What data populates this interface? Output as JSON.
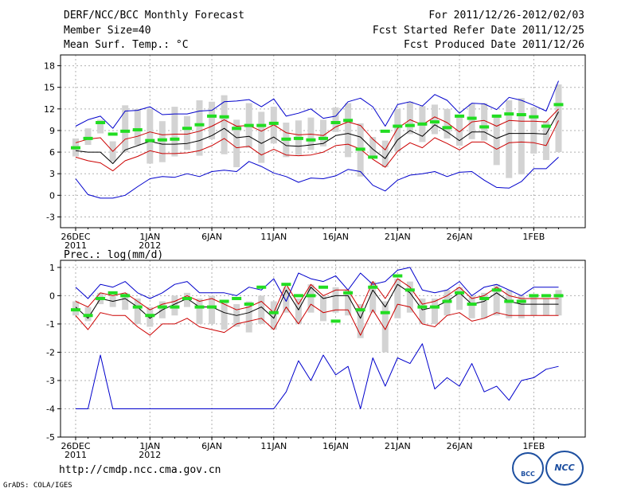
{
  "header": {
    "title": "DERF/NCC/BCC Monthly Forecast",
    "member_size": "Member Size=40",
    "variable": "Mean Surf. Temp.: °C",
    "forecast_period": "For 2011/12/26-2012/02/03",
    "started_refer_date": "Fcst Started Refer Date 2011/12/25",
    "produced_date": "Fcst Produced Date 2011/12/26"
  },
  "footer": {
    "url": "http://cmdp.ncc.cma.gov.cn",
    "credit": "GrADS: COLA/IGES",
    "logo_left": "BCC",
    "logo_right": "NCC"
  },
  "colors": {
    "box": "#d3d3d3",
    "obs_dash": "#22dd22",
    "mean": "#000000",
    "std": "#cc0000",
    "extreme": "#0000cc",
    "grid": "#b0b0b0",
    "frame": "#000000"
  },
  "chart_data": [
    {
      "type": "line",
      "title": "Mean Surf. Temp.: °C",
      "ylim": [
        -4.5,
        19.5
      ],
      "yticks": [
        -3,
        0,
        3,
        6,
        9,
        12,
        15,
        18
      ],
      "ytick_labels": [
        "-3",
        "0",
        "3",
        "6",
        "9",
        "12",
        "15",
        "18"
      ],
      "x_ticks": [
        {
          "day": 0,
          "line1": "26DEC",
          "line2": "2011"
        },
        {
          "day": 6,
          "line1": "1JAN",
          "line2": "2012"
        },
        {
          "day": 11,
          "line1": "6JAN",
          "line2": ""
        },
        {
          "day": 16,
          "line1": "11JAN",
          "line2": ""
        },
        {
          "day": 21,
          "line1": "16JAN",
          "line2": ""
        },
        {
          "day": 26,
          "line1": "21JAN",
          "line2": ""
        },
        {
          "day": 31,
          "line1": "26JAN",
          "line2": ""
        },
        {
          "day": 37,
          "line1": "1FEB",
          "line2": ""
        }
      ],
      "series": [
        {
          "name": "max",
          "color": "#0000cc",
          "values": [
            9.6,
            10.5,
            11.0,
            9.3,
            11.7,
            11.8,
            12.3,
            11.2,
            11.3,
            11.3,
            11.7,
            11.8,
            13.0,
            13.1,
            13.3,
            12.3,
            13.4,
            11.0,
            11.4,
            12.0,
            10.7,
            11.0,
            13.0,
            13.5,
            12.3,
            9.6,
            12.6,
            13.0,
            12.4,
            14.0,
            13.2,
            11.4,
            12.8,
            12.7,
            11.9,
            13.6,
            13.2,
            12.5,
            11.7,
            15.9
          ]
        },
        {
          "name": "std_upper",
          "color": "#cc0000",
          "values": [
            7.3,
            7.8,
            8.0,
            6.1,
            7.8,
            8.2,
            8.8,
            8.4,
            8.5,
            8.5,
            8.9,
            9.6,
            10.5,
            9.6,
            9.7,
            8.9,
            9.8,
            8.7,
            8.4,
            8.5,
            8.3,
            9.5,
            10.2,
            9.7,
            7.8,
            6.3,
            9.3,
            10.5,
            9.8,
            10.9,
            10.1,
            8.8,
            10.2,
            10.4,
            9.6,
            10.4,
            10.3,
            10.3,
            10.2,
            12.0
          ]
        },
        {
          "name": "mean",
          "color": "#000000",
          "values": [
            6.2,
            6.0,
            6.0,
            4.4,
            6.3,
            6.9,
            7.5,
            7.1,
            7.1,
            7.2,
            7.6,
            8.3,
            9.3,
            8.0,
            8.2,
            7.2,
            8.1,
            6.9,
            6.8,
            7.0,
            7.2,
            8.3,
            8.6,
            8.1,
            6.4,
            5.1,
            7.7,
            9.0,
            8.2,
            9.8,
            8.8,
            7.6,
            8.8,
            8.8,
            7.9,
            8.6,
            8.6,
            8.6,
            8.5,
            11.6
          ]
        },
        {
          "name": "std_lower",
          "color": "#cc0000",
          "values": [
            5.3,
            4.8,
            4.5,
            3.4,
            4.8,
            5.4,
            6.2,
            5.8,
            5.8,
            5.9,
            6.2,
            6.9,
            7.9,
            6.6,
            6.8,
            5.6,
            6.4,
            5.6,
            5.5,
            5.6,
            6.0,
            6.9,
            7.1,
            6.4,
            5.0,
            3.9,
            6.1,
            7.3,
            6.6,
            8.0,
            7.2,
            6.3,
            7.4,
            7.4,
            6.4,
            7.3,
            7.4,
            7.3,
            6.9,
            10.4
          ]
        },
        {
          "name": "min",
          "color": "#0000cc",
          "values": [
            2.3,
            0.1,
            -0.4,
            -0.4,
            0.0,
            1.2,
            2.3,
            2.6,
            2.5,
            3.0,
            2.6,
            3.3,
            3.5,
            3.3,
            4.7,
            4.0,
            3.1,
            2.6,
            1.8,
            2.4,
            2.3,
            2.7,
            3.6,
            3.3,
            1.4,
            0.6,
            2.1,
            2.8,
            3.0,
            3.3,
            2.6,
            3.2,
            3.3,
            2.1,
            1.1,
            1.0,
            1.9,
            3.7,
            3.7,
            5.3
          ]
        }
      ],
      "boxes": [
        [
          5.4,
          7.9
        ],
        [
          7.0,
          9.3
        ],
        [
          8.6,
          10.5
        ],
        [
          4.7,
          7.5
        ],
        [
          6.0,
          12.5
        ],
        [
          7.0,
          12.0
        ],
        [
          4.4,
          12.0
        ],
        [
          4.6,
          10.3
        ],
        [
          5.4,
          12.3
        ],
        [
          6.3,
          11.0
        ],
        [
          5.5,
          13.2
        ],
        [
          7.8,
          13.0
        ],
        [
          5.7,
          13.9
        ],
        [
          3.9,
          10.5
        ],
        [
          6.6,
          12.8
        ],
        [
          4.5,
          11.6
        ],
        [
          7.2,
          12.3
        ],
        [
          5.3,
          10.1
        ],
        [
          5.6,
          10.4
        ],
        [
          6.3,
          10.8
        ],
        [
          6.8,
          10.5
        ],
        [
          8.8,
          12.2
        ],
        [
          5.3,
          12.8
        ],
        [
          2.6,
          10.0
        ],
        [
          5.5,
          8.1
        ],
        [
          3.9,
          7.6
        ],
        [
          6.1,
          12.0
        ],
        [
          8.5,
          13.0
        ],
        [
          7.4,
          12.4
        ],
        [
          8.5,
          12.6
        ],
        [
          7.9,
          12.0
        ],
        [
          6.9,
          11.0
        ],
        [
          7.8,
          12.7
        ],
        [
          7.6,
          12.8
        ],
        [
          4.2,
          11.0
        ],
        [
          2.4,
          13.2
        ],
        [
          2.9,
          13.5
        ],
        [
          5.8,
          12.2
        ],
        [
          4.9,
          10.3
        ],
        [
          6.0,
          15.4
        ]
      ],
      "obs": [
        6.6,
        7.9,
        10.1,
        8.5,
        8.9,
        9.1,
        7.6,
        7.7,
        7.8,
        9.3,
        9.8,
        11.0,
        10.9,
        9.3,
        9.7,
        9.7,
        10.0,
        7.8,
        7.9,
        7.7,
        7.9,
        10.1,
        10.4,
        6.4,
        5.3,
        8.9,
        9.6,
        9.7,
        9.9,
        10.2,
        9.4,
        11.0,
        10.7,
        9.5,
        11.0,
        11.3,
        11.2,
        10.9,
        9.6,
        12.6
      ]
    },
    {
      "type": "line",
      "title": "Prec.: log(mm/d)",
      "ylim": [
        -5,
        1.25
      ],
      "yticks": [
        -5,
        -4,
        -3,
        -2,
        -1,
        0,
        1
      ],
      "ytick_labels": [
        "-5",
        "-4",
        "-3",
        "-2",
        "-1",
        "0",
        "1"
      ],
      "x_ticks": [
        {
          "day": 0,
          "line1": "26DEC",
          "line2": "2011"
        },
        {
          "day": 6,
          "line1": "1JAN",
          "line2": "2012"
        },
        {
          "day": 11,
          "line1": "6JAN",
          "line2": ""
        },
        {
          "day": 16,
          "line1": "11JAN",
          "line2": ""
        },
        {
          "day": 21,
          "line1": "16JAN",
          "line2": ""
        },
        {
          "day": 26,
          "line1": "21JAN",
          "line2": ""
        },
        {
          "day": 31,
          "line1": "26JAN",
          "line2": ""
        },
        {
          "day": 37,
          "line1": "1FEB",
          "line2": ""
        }
      ],
      "series": [
        {
          "name": "max",
          "color": "#0000cc",
          "values": [
            0.3,
            -0.1,
            0.4,
            0.3,
            0.5,
            0.1,
            -0.1,
            0.1,
            0.4,
            0.5,
            0.1,
            0.1,
            0.1,
            0.0,
            0.3,
            0.2,
            0.6,
            -0.2,
            0.8,
            0.6,
            0.5,
            0.7,
            0.2,
            0.8,
            0.4,
            0.5,
            0.9,
            1.0,
            0.2,
            0.1,
            0.2,
            0.5,
            0.0,
            0.3,
            0.4,
            0.2,
            0.0,
            0.3,
            0.3,
            0.3
          ]
        },
        {
          "name": "std_upper",
          "color": "#cc0000",
          "values": [
            -0.2,
            -0.4,
            0.1,
            0.0,
            0.1,
            -0.2,
            -0.5,
            -0.3,
            -0.2,
            0.0,
            -0.2,
            -0.1,
            -0.3,
            -0.5,
            -0.4,
            -0.2,
            -0.6,
            0.4,
            -0.3,
            0.4,
            0.0,
            0.2,
            0.2,
            -0.5,
            0.5,
            -0.1,
            0.6,
            0.3,
            -0.3,
            -0.2,
            0.0,
            0.3,
            -0.1,
            0.0,
            0.3,
            0.0,
            -0.1,
            -0.1,
            -0.1,
            -0.1
          ]
        },
        {
          "name": "mean",
          "color": "#000000",
          "values": [
            -0.4,
            -0.8,
            -0.1,
            -0.2,
            -0.1,
            -0.4,
            -0.8,
            -0.5,
            -0.3,
            -0.1,
            -0.4,
            -0.4,
            -0.6,
            -0.7,
            -0.6,
            -0.4,
            -0.8,
            0.2,
            -0.5,
            0.3,
            -0.1,
            0.0,
            0.0,
            -0.8,
            0.2,
            -0.4,
            0.4,
            0.1,
            -0.5,
            -0.4,
            -0.2,
            0.1,
            -0.3,
            -0.2,
            0.1,
            -0.2,
            -0.3,
            -0.3,
            -0.3,
            -0.3
          ]
        },
        {
          "name": "std_lower",
          "color": "#cc0000",
          "values": [
            -0.7,
            -1.2,
            -0.6,
            -0.7,
            -0.7,
            -1.1,
            -1.4,
            -1.0,
            -1.0,
            -0.8,
            -1.1,
            -1.2,
            -1.3,
            -1.0,
            -0.9,
            -0.8,
            -1.2,
            -0.4,
            -1.0,
            -0.3,
            -0.6,
            -0.5,
            -0.5,
            -1.4,
            -0.5,
            -1.2,
            -0.3,
            -0.4,
            -1.0,
            -1.1,
            -0.7,
            -0.6,
            -0.9,
            -0.8,
            -0.6,
            -0.7,
            -0.7,
            -0.7,
            -0.7,
            -0.7
          ]
        },
        {
          "name": "min",
          "color": "#0000cc",
          "values": [
            -4.0,
            -4.0,
            -2.1,
            -4.0,
            -4.0,
            -4.0,
            -4.0,
            -4.0,
            -4.0,
            -4.0,
            -4.0,
            -4.0,
            -4.0,
            -4.0,
            -4.0,
            -4.0,
            -4.0,
            -3.4,
            -2.3,
            -3.0,
            -2.1,
            -2.8,
            -2.5,
            -4.0,
            -2.2,
            -3.2,
            -2.2,
            -2.4,
            -1.7,
            -3.3,
            -2.9,
            -3.2,
            -2.4,
            -3.4,
            -3.2,
            -3.7,
            -3.0,
            -2.9,
            -2.6,
            -2.5
          ]
        }
      ],
      "boxes": [
        [
          -0.7,
          -0.2
        ],
        [
          -0.9,
          -0.4
        ],
        [
          -0.3,
          0.1
        ],
        [
          -0.4,
          0.0
        ],
        [
          -0.5,
          0.1
        ],
        [
          -1.0,
          -0.1
        ],
        [
          -1.1,
          -0.4
        ],
        [
          -0.8,
          -0.2
        ],
        [
          -0.7,
          0.0
        ],
        [
          -0.4,
          0.1
        ],
        [
          -1.0,
          -0.1
        ],
        [
          -1.0,
          0.0
        ],
        [
          -1.2,
          -0.2
        ],
        [
          -1.1,
          -0.3
        ],
        [
          -1.3,
          -0.2
        ],
        [
          -1.0,
          0.0
        ],
        [
          -1.2,
          -0.2
        ],
        [
          -0.6,
          0.3
        ],
        [
          -1.0,
          -0.1
        ],
        [
          -0.6,
          0.4
        ],
        [
          -0.9,
          0.0
        ],
        [
          -0.6,
          0.3
        ],
        [
          -0.7,
          0.2
        ],
        [
          -1.5,
          -0.3
        ],
        [
          -0.6,
          0.5
        ],
        [
          -2.0,
          -0.2
        ],
        [
          -0.8,
          0.6
        ],
        [
          -0.6,
          0.5
        ],
        [
          -1.0,
          -0.1
        ],
        [
          -1.0,
          -0.1
        ],
        [
          -0.7,
          0.2
        ],
        [
          -0.5,
          0.3
        ],
        [
          -0.8,
          0.0
        ],
        [
          -0.8,
          0.1
        ],
        [
          -0.7,
          0.4
        ],
        [
          -0.8,
          0.2
        ],
        [
          -0.8,
          0.0
        ],
        [
          -0.7,
          0.0
        ],
        [
          -0.7,
          -0.1
        ],
        [
          -0.7,
          0.2
        ]
      ],
      "obs": [
        -0.5,
        -0.7,
        -0.1,
        0.1,
        0.0,
        -0.4,
        -0.7,
        -0.4,
        -0.4,
        -0.1,
        -0.4,
        -0.4,
        -0.2,
        -0.1,
        -0.3,
        0.3,
        -0.6,
        0.4,
        0.0,
        0.0,
        0.3,
        -0.9,
        0.1,
        -0.5,
        0.3,
        -0.6,
        0.7,
        0.2,
        -0.4,
        -0.4,
        -0.2,
        0.1,
        -0.3,
        -0.1,
        0.2,
        -0.2,
        -0.2,
        0.0,
        0.0,
        0.0
      ]
    }
  ]
}
